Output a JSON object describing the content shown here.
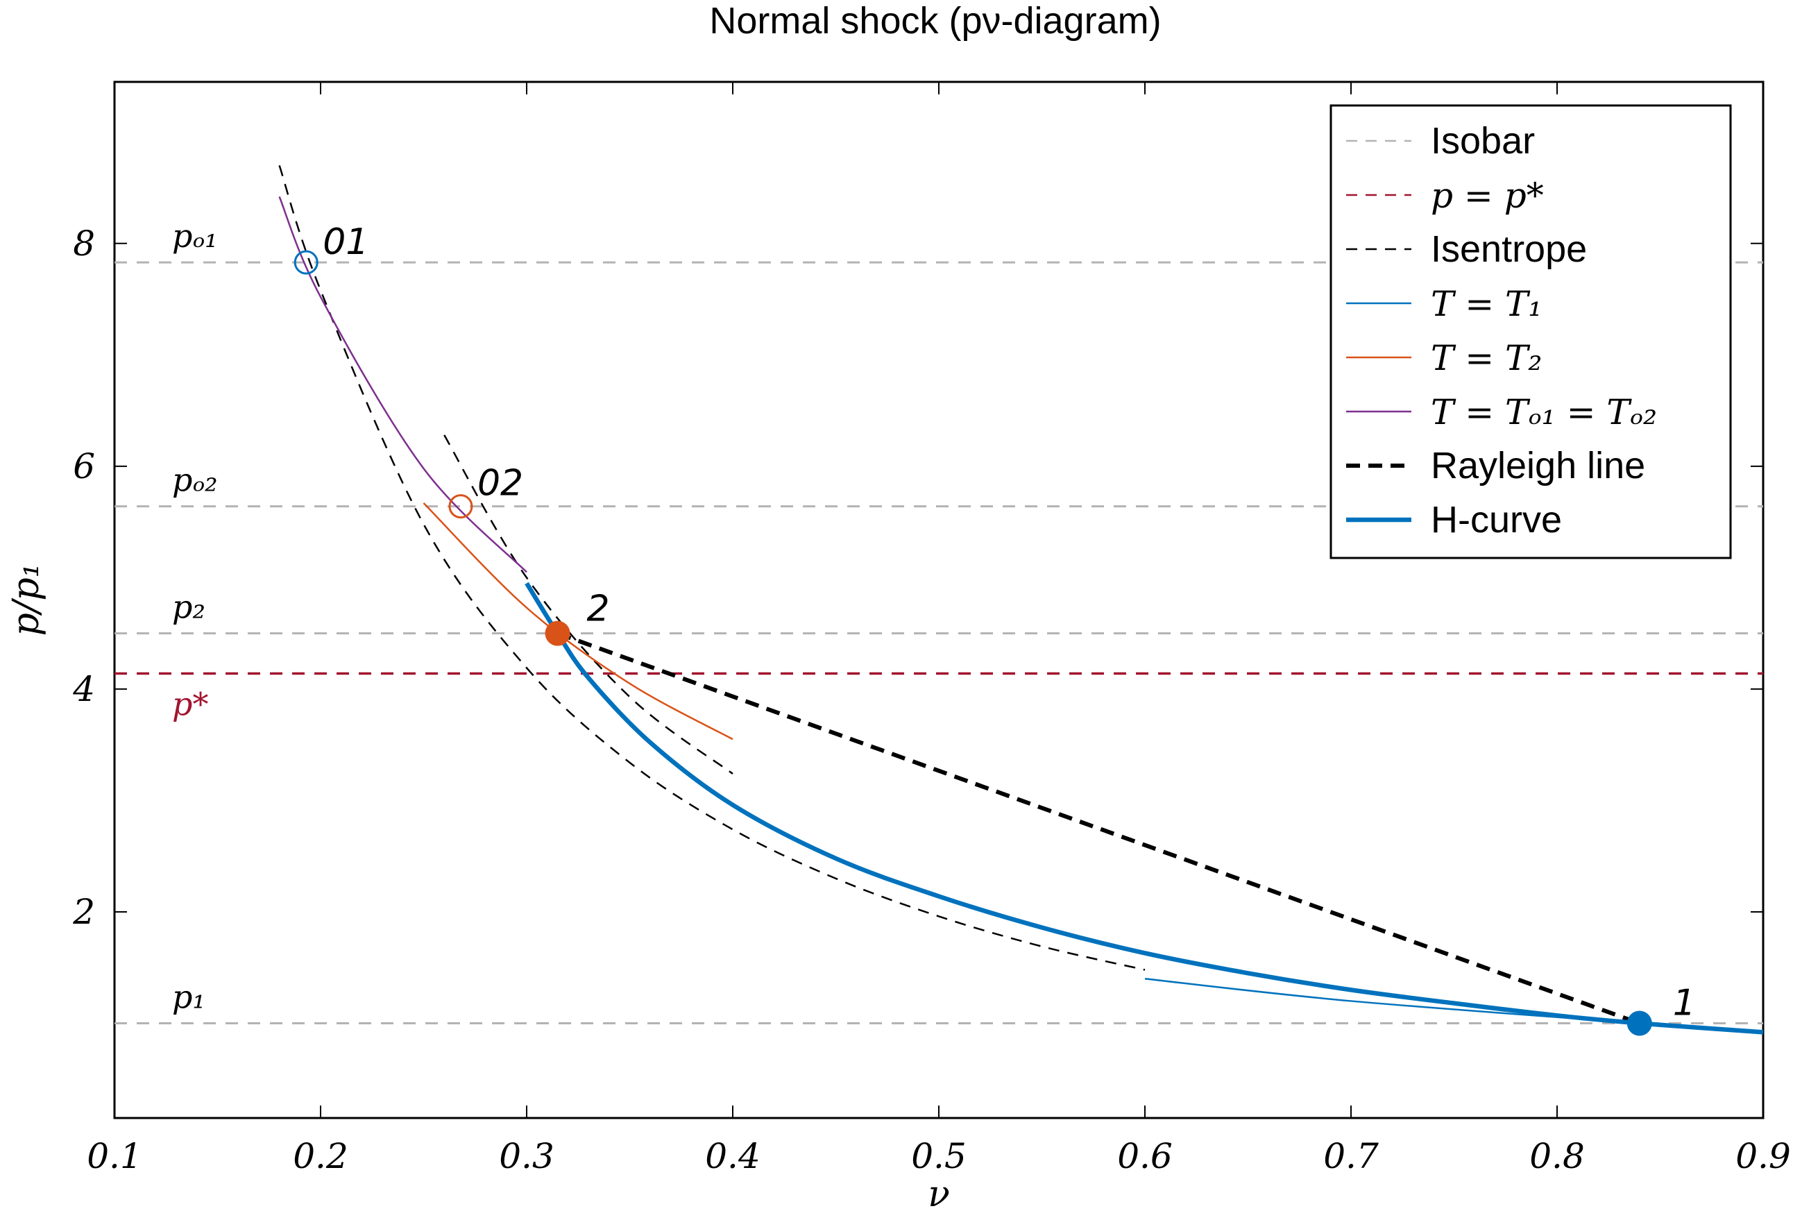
{
  "chart_data": {
    "type": "line",
    "title": "Normal shock (pν-diagram)",
    "xlabel": "ν",
    "ylabel": "p/p₁",
    "xlim": [
      0.1,
      0.9
    ],
    "ylim": [
      0.15,
      9.45
    ],
    "xticks": [
      "0.1",
      "0.2",
      "0.3",
      "0.4",
      "0.5",
      "0.6",
      "0.7",
      "0.8",
      "0.9"
    ],
    "yticks": [
      "2",
      "4",
      "6",
      "8"
    ],
    "grid": false,
    "legend_position": "top-right",
    "isobars": [
      {
        "label": "p₁",
        "y": 1.0
      },
      {
        "label": "p₂",
        "y": 4.5
      },
      {
        "label": "pₒ₂",
        "y": 5.64
      },
      {
        "label": "pₒ₁",
        "y": 7.83
      }
    ],
    "p_star": {
      "label": "p*",
      "y": 4.14
    },
    "points": [
      {
        "label": "1",
        "x": 0.84,
        "y": 1.0,
        "style": "filled",
        "color": "#0072bd"
      },
      {
        "label": "2",
        "x": 0.315,
        "y": 4.5,
        "style": "filled",
        "color": "#d95319"
      },
      {
        "label": "01",
        "x": 0.193,
        "y": 7.83,
        "style": "hollow",
        "color": "#0072bd"
      },
      {
        "label": "02",
        "x": 0.268,
        "y": 5.64,
        "style": "hollow",
        "color": "#d95319"
      }
    ],
    "series": [
      {
        "name": "Isobar",
        "style": "dashed",
        "color": "#b3b3b3"
      },
      {
        "name": "p = p*",
        "style": "dashed",
        "color": "#a2142f"
      },
      {
        "name": "Isentrope",
        "style": "dashed",
        "color": "#000000",
        "x": [
          0.18,
          0.2,
          0.25,
          0.3,
          0.35,
          0.4,
          0.45,
          0.5,
          0.55,
          0.6
        ],
        "y": [
          8.7,
          7.58,
          5.48,
          4.19,
          3.34,
          2.74,
          2.3,
          1.96,
          1.69,
          1.48
        ]
      },
      {
        "name": "Isentrope (through 2)",
        "style": "dashed",
        "color": "#000000",
        "x": [
          0.26,
          0.3,
          0.35,
          0.4
        ],
        "y": [
          6.28,
          5.0,
          3.93,
          3.24
        ]
      },
      {
        "name": "T = T₁",
        "style": "solid",
        "color": "#0072bd",
        "x": [
          0.6,
          0.7,
          0.84
        ],
        "y": [
          1.4,
          1.2,
          1.0
        ]
      },
      {
        "name": "T = T₂",
        "style": "solid",
        "color": "#d95319",
        "x": [
          0.25,
          0.3,
          0.35,
          0.4
        ],
        "y": [
          5.67,
          4.73,
          4.05,
          3.55
        ]
      },
      {
        "name": "T = Tₒ₁ = Tₒ₂",
        "style": "solid",
        "color": "#7e2f8e",
        "x": [
          0.18,
          0.2,
          0.25,
          0.3
        ],
        "y": [
          8.42,
          7.52,
          5.98,
          5.05
        ]
      },
      {
        "name": "Rayleigh line",
        "style": "dashed-thick",
        "color": "#000000",
        "x": [
          0.315,
          0.84
        ],
        "y": [
          4.5,
          1.0
        ]
      },
      {
        "name": "H-curve",
        "style": "solid-thick",
        "color": "#0072bd",
        "x": [
          0.3,
          0.315,
          0.33,
          0.36,
          0.4,
          0.45,
          0.5,
          0.55,
          0.6,
          0.65,
          0.7,
          0.75,
          0.8,
          0.84,
          0.9
        ],
        "y": [
          4.95,
          4.5,
          4.1,
          3.52,
          2.96,
          2.48,
          2.14,
          1.86,
          1.63,
          1.45,
          1.3,
          1.18,
          1.07,
          1.0,
          0.92
        ]
      }
    ]
  }
}
